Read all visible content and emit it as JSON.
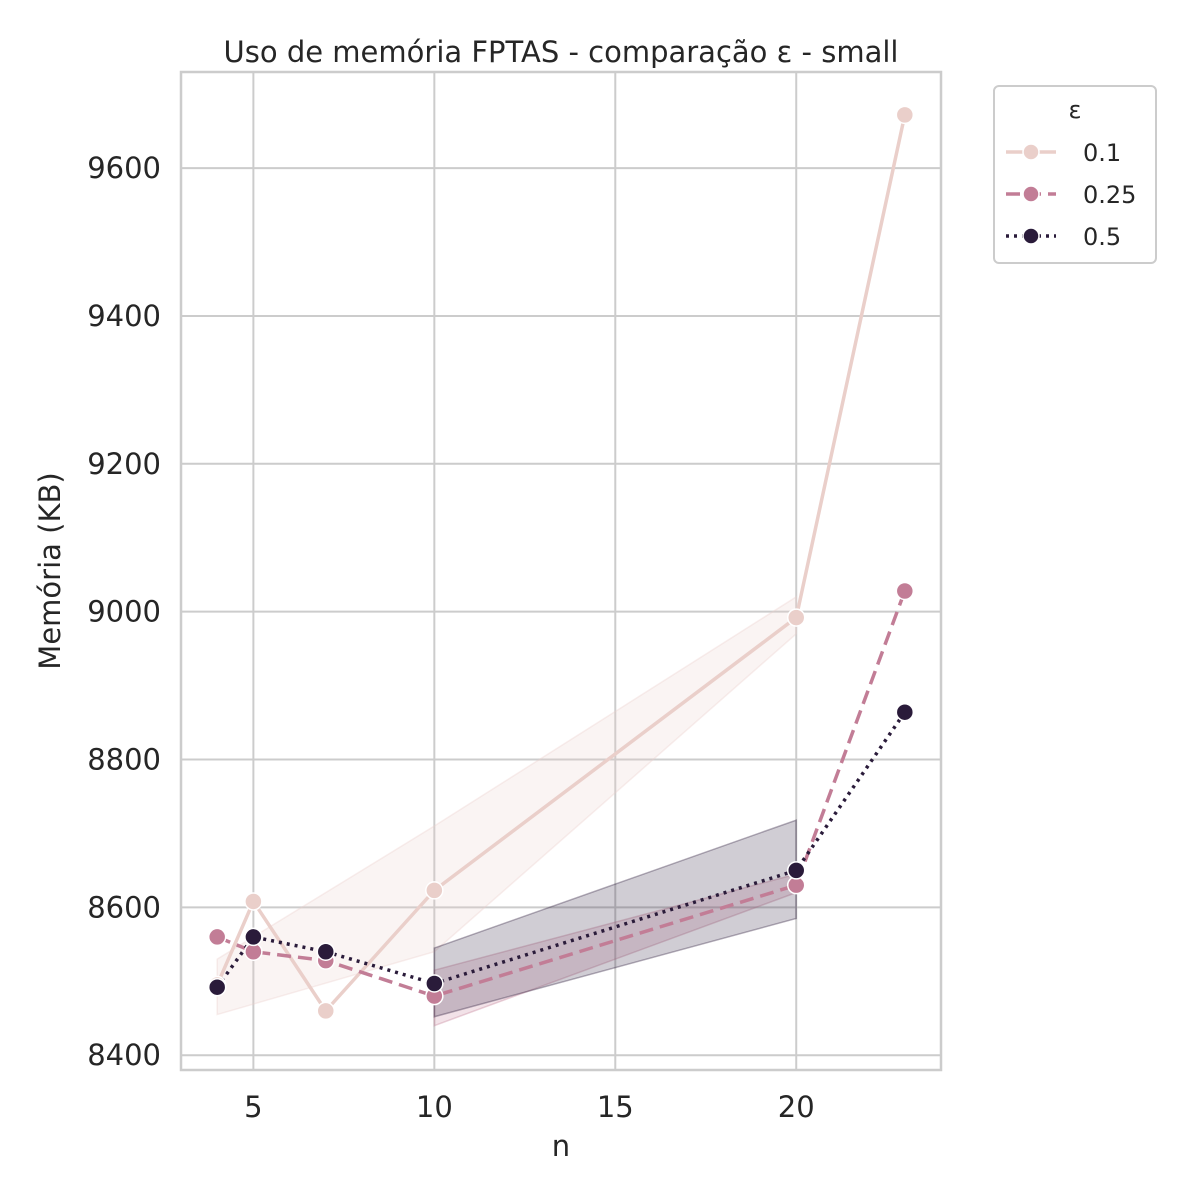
{
  "chart_data": {
    "type": "line",
    "title": "Uso de memória FPTAS - comparação ε - small",
    "xlabel": "n",
    "ylabel": "Memória (KB)",
    "xlim": [
      3,
      24
    ],
    "ylim": [
      8380,
      9730
    ],
    "xticks": [
      5,
      10,
      15,
      20
    ],
    "yticks": [
      8400,
      8600,
      8800,
      9000,
      9200,
      9400,
      9600
    ],
    "grid": true,
    "legend": {
      "title": "ε",
      "position": "upper-right-outside"
    },
    "series": [
      {
        "name": "0.1",
        "color": "#eacfca",
        "dash": "",
        "points": [
          {
            "x": 4,
            "y": 8495
          },
          {
            "x": 5,
            "y": 8608
          },
          {
            "x": 7,
            "y": 8460
          },
          {
            "x": 10,
            "y": 8623
          },
          {
            "x": 20,
            "y": 8992
          },
          {
            "x": 23,
            "y": 9672
          }
        ],
        "ci": [
          {
            "x": 4,
            "lo": 8455,
            "hi": 8530
          },
          {
            "x": 10,
            "lo": 8540,
            "hi": 8710
          },
          {
            "x": 20,
            "lo": 8970,
            "hi": 9020
          }
        ]
      },
      {
        "name": "0.25",
        "color": "#c27d96",
        "dash": "14,7",
        "points": [
          {
            "x": 4,
            "y": 8560
          },
          {
            "x": 5,
            "y": 8540
          },
          {
            "x": 7,
            "y": 8528
          },
          {
            "x": 10,
            "y": 8480
          },
          {
            "x": 20,
            "y": 8630
          },
          {
            "x": 23,
            "y": 9028
          }
        ],
        "ci": [
          {
            "x": 10,
            "lo": 8440,
            "hi": 8515
          },
          {
            "x": 20,
            "lo": 8620,
            "hi": 8645
          }
        ]
      },
      {
        "name": "0.5",
        "color": "#2a1b3a",
        "dash": "3,5",
        "points": [
          {
            "x": 4,
            "y": 8492
          },
          {
            "x": 5,
            "y": 8560
          },
          {
            "x": 7,
            "y": 8540
          },
          {
            "x": 10,
            "y": 8497
          },
          {
            "x": 20,
            "y": 8650
          },
          {
            "x": 23,
            "y": 8864
          }
        ],
        "ci": [
          {
            "x": 10,
            "lo": 8452,
            "hi": 8545
          },
          {
            "x": 20,
            "lo": 8585,
            "hi": 8718
          }
        ]
      }
    ]
  }
}
